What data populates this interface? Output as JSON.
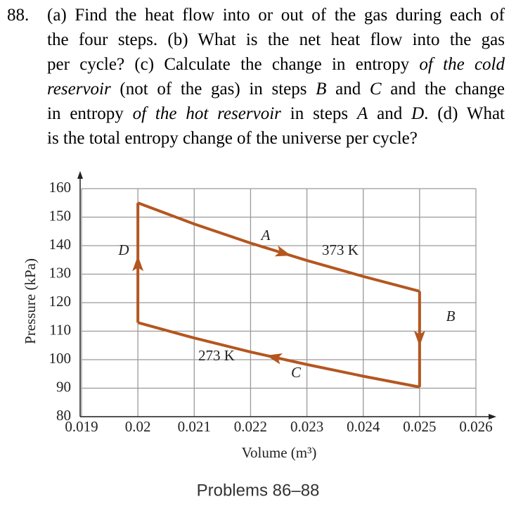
{
  "problem": {
    "number": "88.",
    "lines": [
      [
        {
          "text": "(a) Find the heat flow into or out of the gas during each of"
        }
      ],
      [
        {
          "text": "the four steps. (b) What is the net heat flow into the gas"
        }
      ],
      [
        {
          "text": "per cycle? (c) Calculate the change in entropy "
        },
        {
          "text": "of the cold",
          "italic": true
        }
      ],
      [
        {
          "text": "reservoir",
          "italic": true
        },
        {
          "text": " (not of the gas) in steps "
        },
        {
          "text": "B",
          "italic": true
        },
        {
          "text": " and "
        },
        {
          "text": "C",
          "italic": true
        },
        {
          "text": " and the change"
        }
      ],
      [
        {
          "text": "in entropy "
        },
        {
          "text": "of the hot reservoir",
          "italic": true
        },
        {
          "text": " in steps "
        },
        {
          "text": "A",
          "italic": true
        },
        {
          "text": " and "
        },
        {
          "text": "D",
          "italic": true
        },
        {
          "text": ". (d) What"
        }
      ],
      [
        {
          "text": "is the total entropy change of the universe per cycle?"
        }
      ]
    ]
  },
  "chart_data": {
    "type": "line",
    "xlabel": "Volume (m³)",
    "ylabel": "Pressure (kPa)",
    "xlim": [
      0.019,
      0.026
    ],
    "ylim": [
      80,
      160
    ],
    "xticks": [
      0.019,
      0.02,
      0.021,
      0.022,
      0.023,
      0.024,
      0.025,
      0.026
    ],
    "yticks": [
      80,
      90,
      100,
      110,
      120,
      130,
      140,
      150,
      160
    ],
    "grid": true,
    "series": [
      {
        "name": "A",
        "color": "#b4561f",
        "x": [
          0.02,
          0.021,
          0.022,
          0.023,
          0.024,
          0.025
        ],
        "values": [
          155,
          147.6,
          140.9,
          134.8,
          129.2,
          124
        ]
      },
      {
        "name": "B",
        "color": "#b4561f",
        "x": [
          0.025,
          0.025
        ],
        "values": [
          124,
          90.4
        ]
      },
      {
        "name": "C",
        "color": "#b4561f",
        "x": [
          0.025,
          0.024,
          0.023,
          0.022,
          0.021,
          0.02
        ],
        "values": [
          90.4,
          94.2,
          98.3,
          102.7,
          107.6,
          113
        ]
      },
      {
        "name": "D",
        "color": "#b4561f",
        "x": [
          0.02,
          0.02
        ],
        "values": [
          113,
          155
        ]
      }
    ],
    "annotations": [
      {
        "text": "373 K"
      },
      {
        "text": "273 K"
      }
    ]
  },
  "caption": "Problems 86–88"
}
